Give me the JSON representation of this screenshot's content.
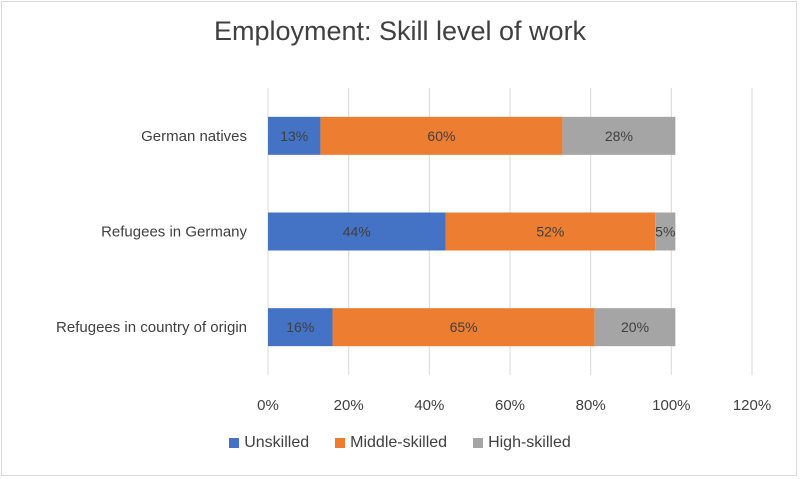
{
  "chart_data": {
    "type": "bar",
    "orientation": "horizontal",
    "stacked": true,
    "title": "Employment: Skill level of work",
    "categories": [
      "German natives",
      "Refugees in Germany",
      "Refugees in country of origin"
    ],
    "series": [
      {
        "name": "Unskilled",
        "color": "#4472c4",
        "values": [
          13,
          44,
          16
        ],
        "labels": [
          "13%",
          "44%",
          "16%"
        ]
      },
      {
        "name": "Middle-skilled",
        "color": "#ed7d31",
        "values": [
          60,
          52,
          65
        ],
        "labels": [
          "60%",
          "52%",
          "65%"
        ]
      },
      {
        "name": "High-skilled",
        "color": "#a5a5a5",
        "values": [
          28,
          5,
          20
        ],
        "labels": [
          "28%",
          "5%",
          "20%"
        ]
      }
    ],
    "xlim": [
      0,
      120
    ],
    "x_ticks": [
      "0%",
      "20%",
      "40%",
      "60%",
      "80%",
      "100%",
      "120%"
    ],
    "grid": true,
    "legend_position": "bottom"
  }
}
